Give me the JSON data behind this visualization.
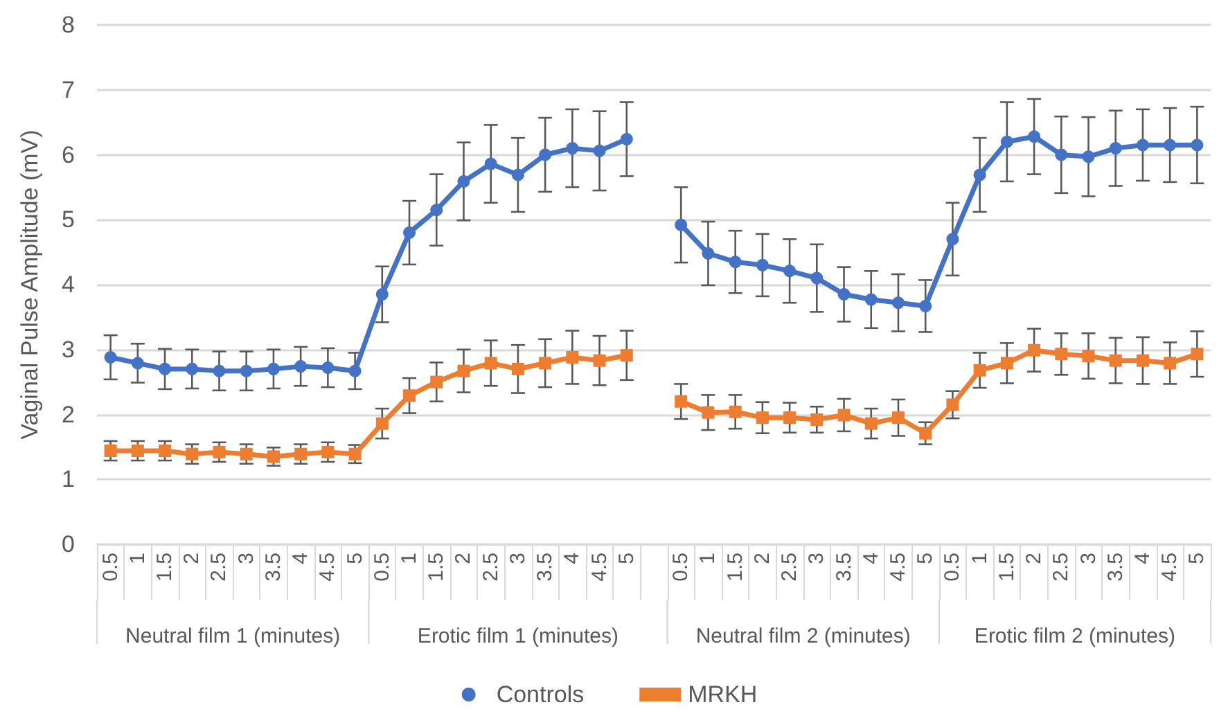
{
  "chart_data": {
    "type": "line",
    "ylabel": "Vaginal Pulse Amplitude (mV)",
    "categories": [
      "0.5",
      "1",
      "1.5",
      "2",
      "2.5",
      "3",
      "3.5",
      "4",
      "4.5",
      "5",
      "0.5",
      "1",
      "1.5",
      "2",
      "2.5",
      "3",
      "3.5",
      "4",
      "4.5",
      "5",
      null,
      "0.5",
      "1",
      "1.5",
      "2",
      "2.5",
      "3",
      "3.5",
      "4",
      "4.5",
      "5",
      "0.5",
      "1",
      "1.5",
      "2",
      "2.5",
      "3",
      "3.5",
      "4",
      "4.5",
      "5"
    ],
    "series": [
      {
        "name": "Controls",
        "color": "#4472c4",
        "marker": "circle",
        "values": [
          2.88,
          2.79,
          2.7,
          2.7,
          2.67,
          2.67,
          2.7,
          2.74,
          2.72,
          2.67,
          3.85,
          4.8,
          5.15,
          5.59,
          5.86,
          5.69,
          6.0,
          6.1,
          6.06,
          6.24,
          null,
          4.92,
          4.48,
          4.35,
          4.3,
          4.21,
          4.1,
          3.85,
          3.77,
          3.72,
          3.67,
          4.7,
          5.69,
          6.2,
          6.28,
          6.0,
          5.97,
          6.1,
          6.15,
          6.15,
          6.15
        ],
        "errors": [
          0.34,
          0.3,
          0.31,
          0.3,
          0.3,
          0.3,
          0.3,
          0.3,
          0.3,
          0.28,
          0.43,
          0.49,
          0.55,
          0.6,
          0.6,
          0.57,
          0.57,
          0.6,
          0.61,
          0.57,
          null,
          0.58,
          0.49,
          0.48,
          0.48,
          0.49,
          0.52,
          0.42,
          0.44,
          0.44,
          0.4,
          0.56,
          0.57,
          0.61,
          0.58,
          0.59,
          0.61,
          0.58,
          0.55,
          0.57,
          0.59
        ]
      },
      {
        "name": "MRKH",
        "color": "#ed7d31",
        "marker": "square",
        "values": [
          1.44,
          1.44,
          1.44,
          1.39,
          1.42,
          1.39,
          1.35,
          1.39,
          1.42,
          1.39,
          1.86,
          2.29,
          2.5,
          2.67,
          2.79,
          2.7,
          2.79,
          2.88,
          2.83,
          2.91,
          null,
          2.2,
          2.03,
          2.04,
          1.95,
          1.95,
          1.92,
          1.99,
          1.86,
          1.95,
          1.71,
          2.15,
          2.68,
          2.79,
          2.99,
          2.93,
          2.9,
          2.83,
          2.83,
          2.79,
          2.93
        ],
        "errors": [
          0.15,
          0.15,
          0.15,
          0.15,
          0.15,
          0.15,
          0.14,
          0.15,
          0.15,
          0.14,
          0.23,
          0.27,
          0.3,
          0.33,
          0.35,
          0.37,
          0.37,
          0.41,
          0.38,
          0.38,
          null,
          0.27,
          0.27,
          0.26,
          0.24,
          0.23,
          0.2,
          0.25,
          0.23,
          0.28,
          0.17,
          0.21,
          0.27,
          0.31,
          0.33,
          0.32,
          0.35,
          0.35,
          0.36,
          0.32,
          0.35
        ]
      }
    ],
    "annotations": [
      "Neutral film 1 (minutes)",
      "Erotic film 1 (minutes)",
      "Neutral film 2 (minutes)",
      "Erotic film 2 (minutes)"
    ],
    "ylim": [
      0,
      8
    ],
    "yticks": [
      0,
      1,
      2,
      3,
      4,
      5,
      6,
      7,
      8
    ],
    "grid": "y",
    "legend": "bottom",
    "line_style": "solid"
  }
}
